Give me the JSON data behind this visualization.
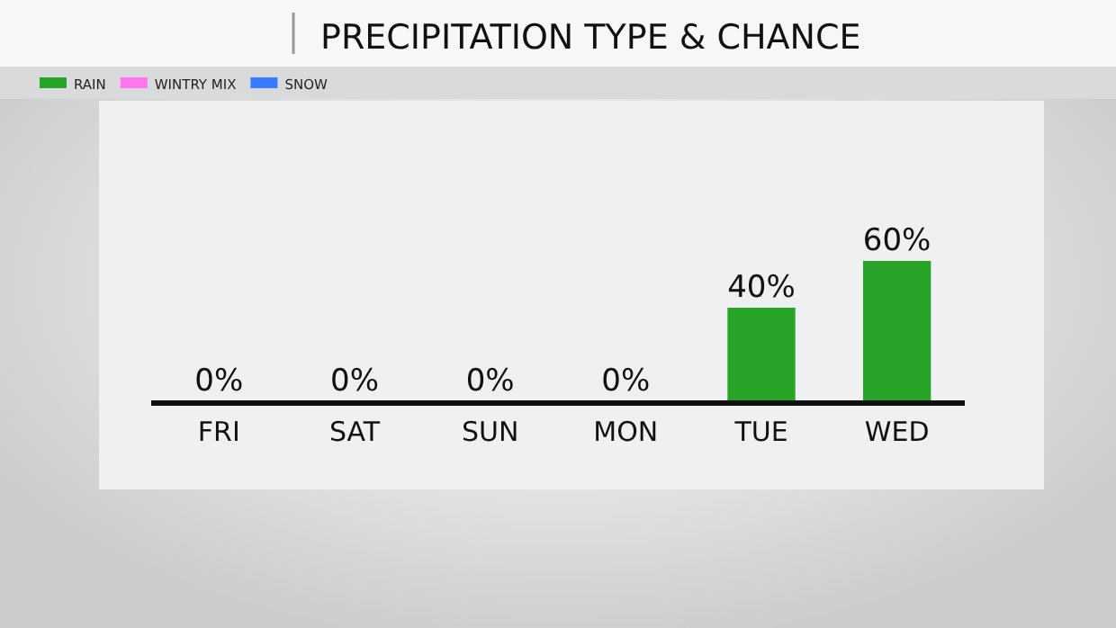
{
  "chart_data": {
    "type": "bar",
    "title": "PRECIPITATION TYPE & CHANCE",
    "categories": [
      "FRI",
      "SAT",
      "SUN",
      "MON",
      "TUE",
      "WED"
    ],
    "stacked": true,
    "series": [
      {
        "name": "RAIN",
        "color": "#28a428",
        "values": [
          0,
          0,
          0,
          0,
          40,
          60
        ],
        "value_labels": [
          "0%",
          "0%",
          "0%",
          "0%",
          "40%",
          "60%"
        ]
      },
      {
        "name": "WINTRY MIX",
        "color": "#ff77ee",
        "values": [
          null,
          null,
          null,
          null,
          null,
          null
        ]
      },
      {
        "name": "SNOW",
        "color": "#3a7bff",
        "values": [
          null,
          null,
          null,
          null,
          null,
          null
        ]
      }
    ],
    "legend": "top left"
  }
}
